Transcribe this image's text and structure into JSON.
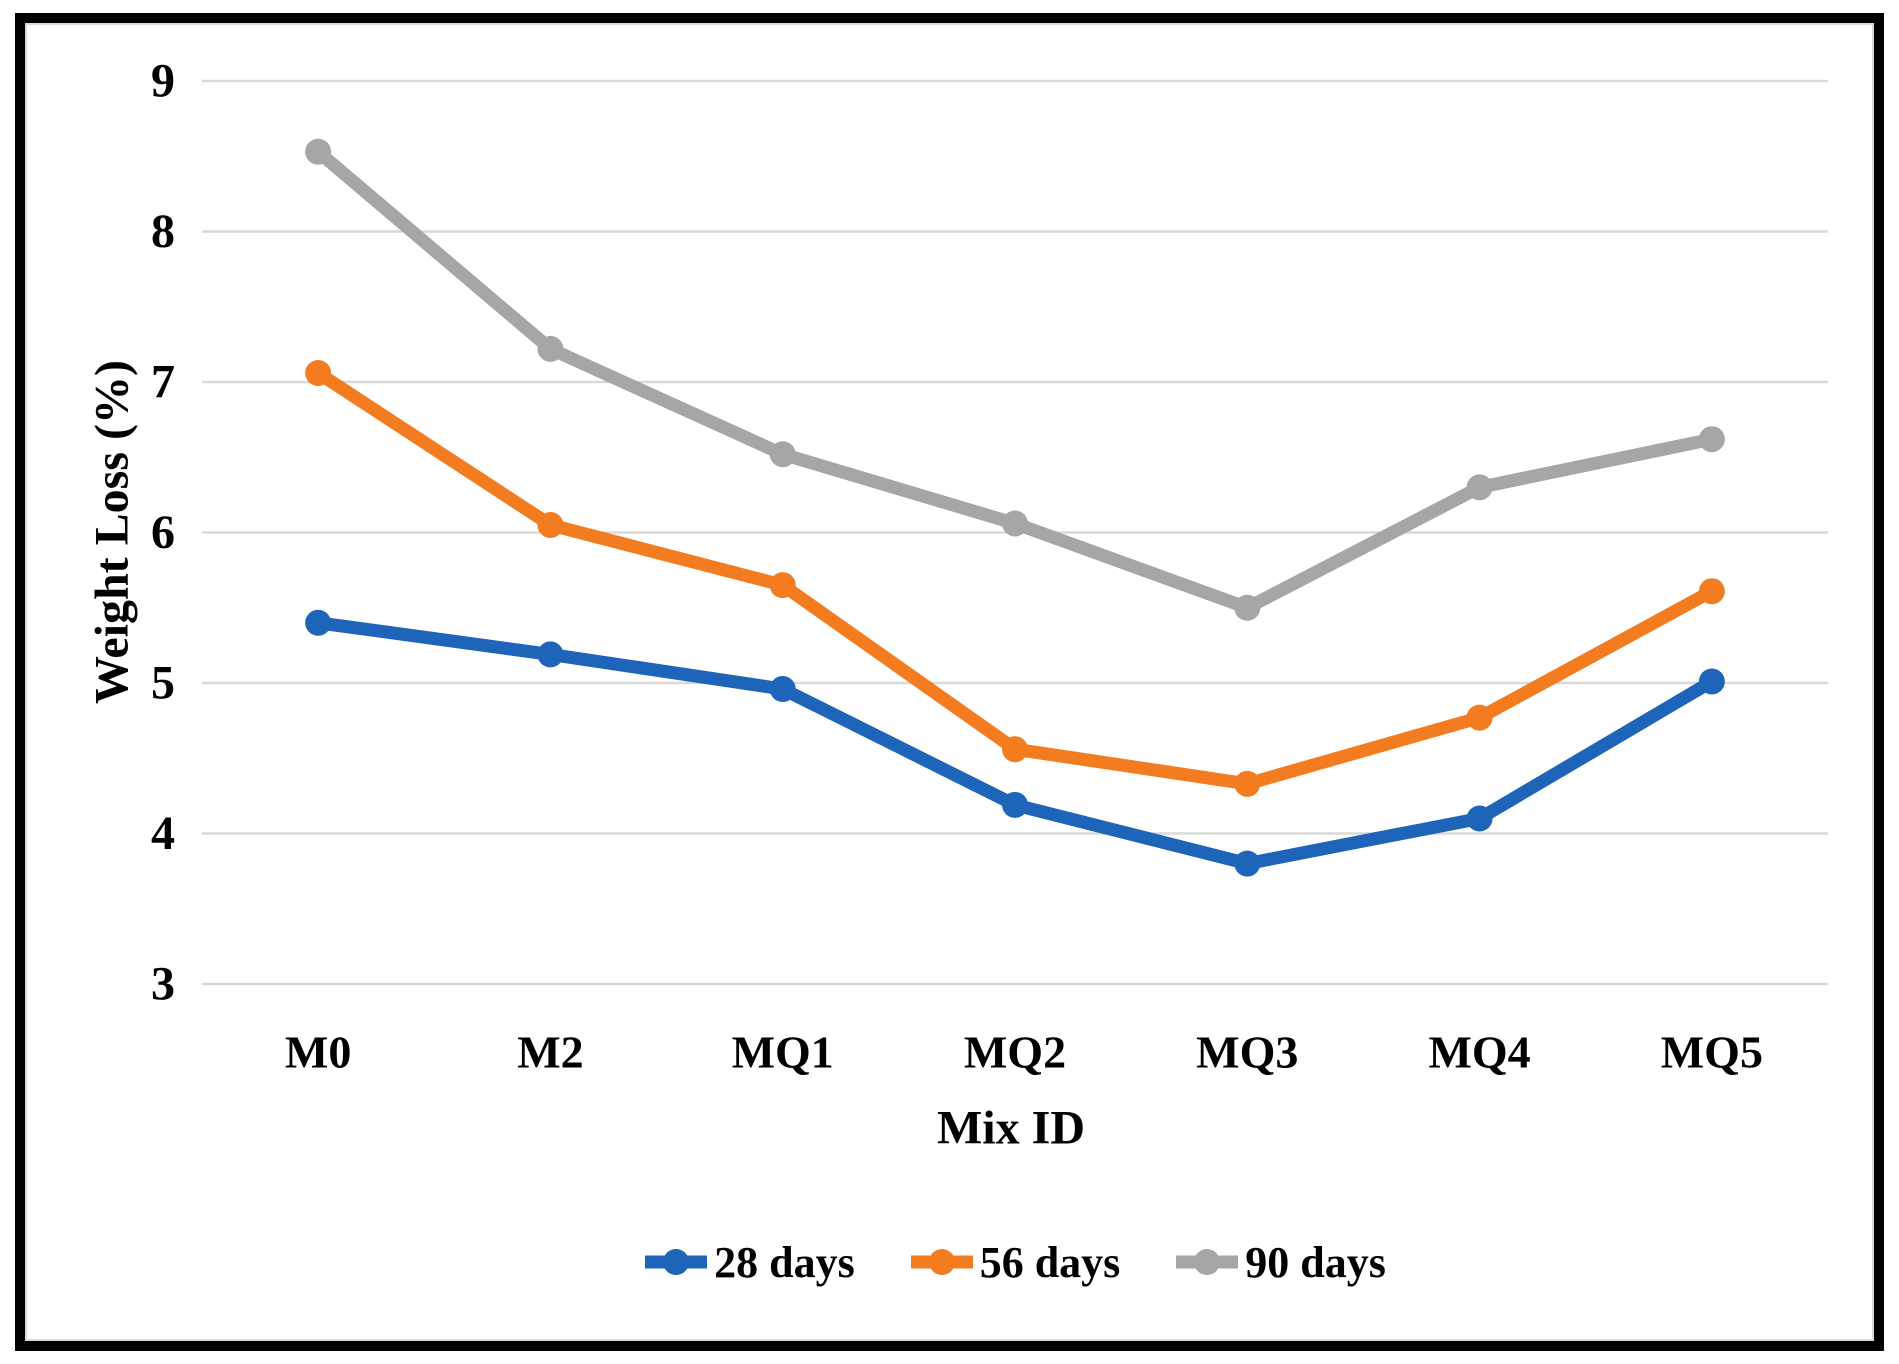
{
  "chart_data": {
    "type": "line",
    "categories": [
      "M0",
      "M2",
      "MQ1",
      "MQ2",
      "MQ3",
      "MQ4",
      "MQ5"
    ],
    "series": [
      {
        "name": "28 days",
        "color": "#1e64b9",
        "values": [
          5.4,
          5.19,
          4.96,
          4.19,
          3.8,
          4.1,
          5.01
        ]
      },
      {
        "name": "56 days",
        "color": "#f47c20",
        "values": [
          7.06,
          6.05,
          5.65,
          4.56,
          4.33,
          4.77,
          5.61
        ]
      },
      {
        "name": "90 days",
        "color": "#a6a6a6",
        "values": [
          8.53,
          7.22,
          6.52,
          6.06,
          5.5,
          6.3,
          6.62
        ]
      }
    ],
    "xlabel": "Mix ID",
    "ylabel": "Weight Loss (%)",
    "ylim": [
      3,
      9
    ],
    "yticks": [
      9,
      8,
      7,
      6,
      5,
      4,
      3
    ],
    "grid": "horizontal",
    "grid_color": "#d9d9d9",
    "legend_position": "bottom",
    "marker": "circle"
  }
}
